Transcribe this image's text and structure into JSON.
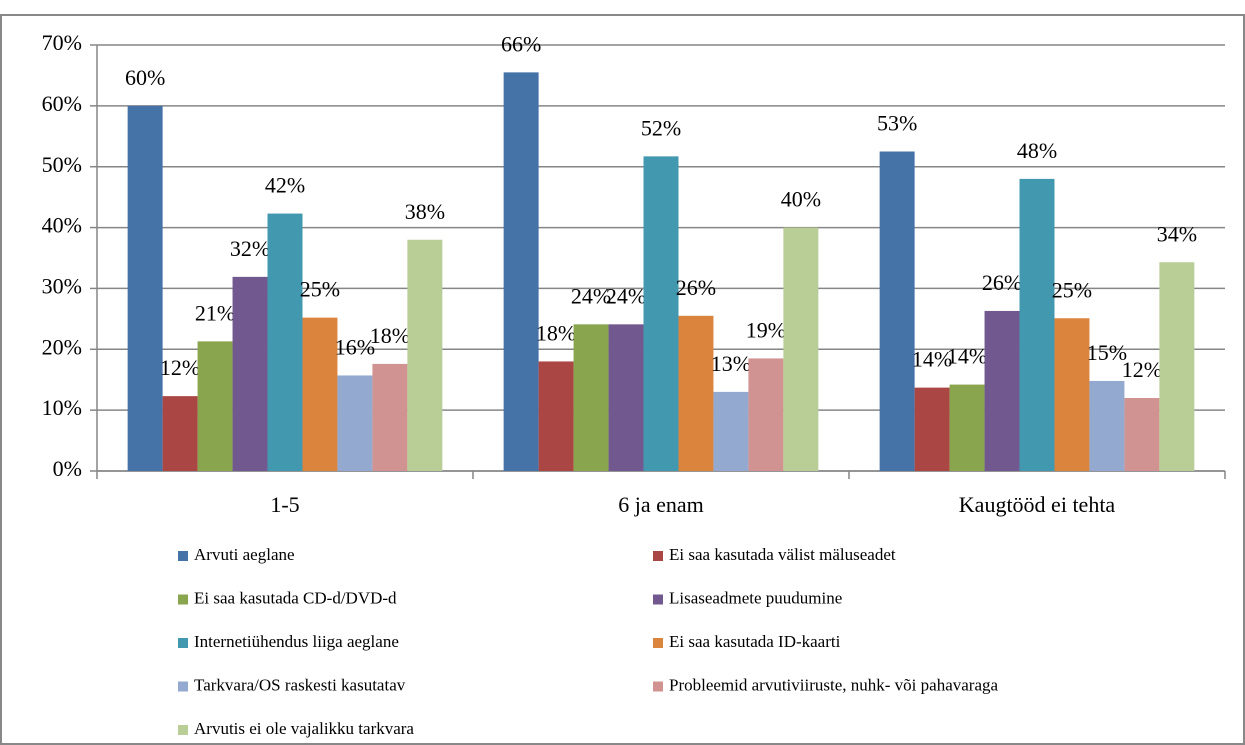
{
  "chart_data": {
    "type": "bar",
    "categories": [
      "1-5",
      "6 ja enam",
      "Kaugtööd ei tehta"
    ],
    "series": [
      {
        "name": "Arvuti aeglane",
        "color": "#4572a7",
        "values": [
          60,
          65.5,
          52.5
        ],
        "value_labels": [
          "60%",
          "66%",
          "53%"
        ]
      },
      {
        "name": "Ei saa kasutada välist mäluseadet",
        "color": "#aa4643",
        "values": [
          12.3,
          18,
          13.7
        ],
        "value_labels": [
          "12%",
          "18%",
          "14%"
        ]
      },
      {
        "name": "Ei saa kasutada CD-d/DVD-d",
        "color": "#89a54e",
        "values": [
          21.3,
          24.1,
          14.2
        ],
        "value_labels": [
          "21%",
          "24%",
          "14%"
        ]
      },
      {
        "name": "Lisaseadmete puudumine",
        "color": "#71588f",
        "values": [
          31.9,
          24.1,
          26.3
        ],
        "value_labels": [
          "32%",
          "24%",
          "26%"
        ]
      },
      {
        "name": "Internetiühendus liiga aeglane",
        "color": "#4198af",
        "values": [
          42.3,
          51.7,
          48
        ],
        "value_labels": [
          "42%",
          "52%",
          "48%"
        ]
      },
      {
        "name": "Ei saa kasutada ID-kaarti",
        "color": "#db843d",
        "values": [
          25.2,
          25.5,
          25.1
        ],
        "value_labels": [
          "25%",
          "26%",
          "25%"
        ]
      },
      {
        "name": "Tarkvara/OS raskesti kasutatav",
        "color": "#93a9cf",
        "values": [
          15.7,
          13,
          14.8
        ],
        "value_labels": [
          "16%",
          "13%",
          "15%"
        ]
      },
      {
        "name": "Probleemid arvutiviiruste, nuhk- või pahavaraga",
        "color": "#d19392",
        "values": [
          17.6,
          18.5,
          12
        ],
        "value_labels": [
          "18%",
          "19%",
          "12%"
        ]
      },
      {
        "name": "Arvutis ei ole vajalikku tarkvara",
        "color": "#b9cd96",
        "values": [
          38,
          40,
          34.3
        ],
        "value_labels": [
          "38%",
          "40%",
          "34%"
        ]
      }
    ],
    "ylim": [
      0,
      70
    ],
    "yticks": [
      {
        "value": 0,
        "label": "0%"
      },
      {
        "value": 10,
        "label": "10%"
      },
      {
        "value": 20,
        "label": "20%"
      },
      {
        "value": 30,
        "label": "30%"
      },
      {
        "value": 40,
        "label": "40%"
      },
      {
        "value": 50,
        "label": "50%"
      },
      {
        "value": 60,
        "label": "60%"
      },
      {
        "value": 70,
        "label": "70%"
      }
    ],
    "grid": true
  }
}
